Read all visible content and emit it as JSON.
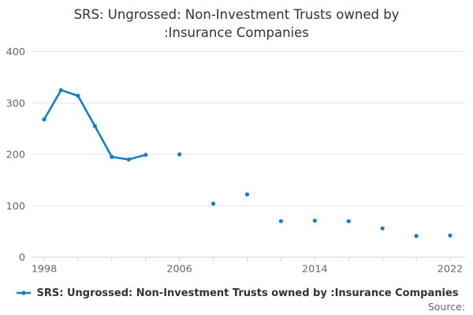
{
  "chart": {
    "title": "SRS: Ungrossed: Non-Investment Trusts owned by :Insurance Companies",
    "legend_label": "SRS: Ungrossed: Non-Investment Trusts owned by :Insurance Companies",
    "source_label": "Source:"
  },
  "chart_data": {
    "type": "line",
    "title": "SRS: Ungrossed: Non-Investment Trusts owned by :Insurance Companies",
    "x": [
      1998,
      1999,
      2000,
      2001,
      2002,
      2003,
      2004,
      2006,
      2008,
      2010,
      2012,
      2014,
      2016,
      2018,
      2020,
      2022
    ],
    "series": [
      {
        "name": "SRS: Ungrossed: Non-Investment Trusts owned by :Insurance Companies",
        "values": [
          268,
          325,
          314,
          255,
          195,
          190,
          199,
          200,
          104,
          122,
          70,
          71,
          70,
          56,
          41,
          42
        ]
      }
    ],
    "note": "points are connected only for consecutive years (1998-2004); 2006-2022 biennial points are isolated markers",
    "xlabel": "",
    "ylabel": "",
    "ylim": [
      0,
      400
    ],
    "yticks": [
      0,
      100,
      200,
      300,
      400
    ],
    "xtick_minor_years_step": 2,
    "xtick_label_years": [
      1998,
      2006,
      2014,
      2022
    ],
    "grid": "horizontal-only",
    "legend_position": "bottom-center",
    "colors": {
      "series": "#1380c4",
      "grid": "#e6e6e6",
      "axis": "#ccd6eb",
      "axis_labels": "#666666",
      "title": "#333333",
      "source": "#666666"
    }
  }
}
